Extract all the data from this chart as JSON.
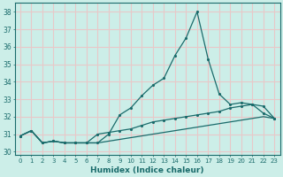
{
  "xlabel": "Humidex (Indice chaleur)",
  "bg_color": "#cceee8",
  "grid_color": "#e8c8c8",
  "line_color": "#1a6b6b",
  "ylim": [
    29.8,
    38.5
  ],
  "xlim": [
    -0.5,
    23.5
  ],
  "yticks": [
    30,
    31,
    32,
    33,
    34,
    35,
    36,
    37,
    38
  ],
  "xticks": [
    0,
    1,
    2,
    3,
    4,
    5,
    6,
    7,
    8,
    9,
    10,
    11,
    12,
    13,
    14,
    15,
    16,
    17,
    18,
    19,
    20,
    21,
    22,
    23
  ],
  "line1": [
    30.9,
    31.2,
    30.5,
    30.6,
    30.5,
    30.5,
    30.5,
    30.5,
    31.0,
    32.1,
    32.5,
    33.2,
    33.8,
    34.2,
    35.5,
    36.5,
    38.0,
    35.3,
    33.3,
    32.7,
    32.8,
    32.7,
    32.2,
    31.9
  ],
  "line2": [
    30.9,
    31.2,
    30.5,
    30.6,
    30.5,
    30.5,
    30.5,
    31.0,
    31.1,
    31.2,
    31.3,
    31.5,
    31.7,
    31.8,
    31.9,
    32.0,
    32.1,
    32.2,
    32.3,
    32.5,
    32.6,
    32.7,
    32.6,
    31.9
  ],
  "line3": [
    30.9,
    31.2,
    30.5,
    30.6,
    30.5,
    30.5,
    30.5,
    30.5,
    30.6,
    30.7,
    30.8,
    30.9,
    31.0,
    31.1,
    31.2,
    31.3,
    31.4,
    31.5,
    31.6,
    31.7,
    31.8,
    31.9,
    32.0,
    31.9
  ]
}
